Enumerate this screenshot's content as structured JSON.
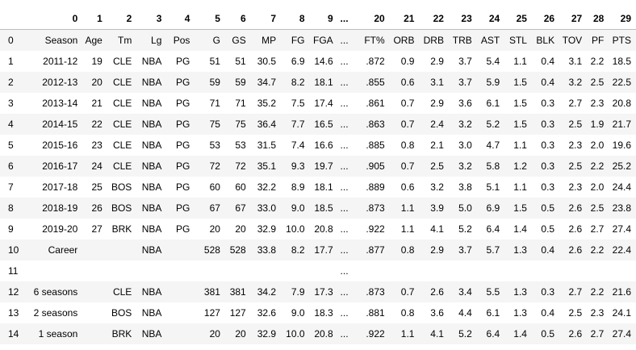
{
  "columns": [
    "0",
    "1",
    "2",
    "3",
    "4",
    "5",
    "6",
    "7",
    "8",
    "9",
    "...",
    "20",
    "21",
    "22",
    "23",
    "24",
    "25",
    "26",
    "27",
    "28",
    "29"
  ],
  "rows": [
    {
      "index": "0",
      "cells": [
        "Season",
        "Age",
        "Tm",
        "Lg",
        "Pos",
        "G",
        "GS",
        "MP",
        "FG",
        "FGA",
        "...",
        "FT%",
        "ORB",
        "DRB",
        "TRB",
        "AST",
        "STL",
        "BLK",
        "TOV",
        "PF",
        "PTS"
      ]
    },
    {
      "index": "1",
      "cells": [
        "2011-12",
        "19",
        "CLE",
        "NBA",
        "PG",
        "51",
        "51",
        "30.5",
        "6.9",
        "14.6",
        "...",
        ".872",
        "0.9",
        "2.9",
        "3.7",
        "5.4",
        "1.1",
        "0.4",
        "3.1",
        "2.2",
        "18.5"
      ]
    },
    {
      "index": "2",
      "cells": [
        "2012-13",
        "20",
        "CLE",
        "NBA",
        "PG",
        "59",
        "59",
        "34.7",
        "8.2",
        "18.1",
        "...",
        ".855",
        "0.6",
        "3.1",
        "3.7",
        "5.9",
        "1.5",
        "0.4",
        "3.2",
        "2.5",
        "22.5"
      ]
    },
    {
      "index": "3",
      "cells": [
        "2013-14",
        "21",
        "CLE",
        "NBA",
        "PG",
        "71",
        "71",
        "35.2",
        "7.5",
        "17.4",
        "...",
        ".861",
        "0.7",
        "2.9",
        "3.6",
        "6.1",
        "1.5",
        "0.3",
        "2.7",
        "2.3",
        "20.8"
      ]
    },
    {
      "index": "4",
      "cells": [
        "2014-15",
        "22",
        "CLE",
        "NBA",
        "PG",
        "75",
        "75",
        "36.4",
        "7.7",
        "16.5",
        "...",
        ".863",
        "0.7",
        "2.4",
        "3.2",
        "5.2",
        "1.5",
        "0.3",
        "2.5",
        "1.9",
        "21.7"
      ]
    },
    {
      "index": "5",
      "cells": [
        "2015-16",
        "23",
        "CLE",
        "NBA",
        "PG",
        "53",
        "53",
        "31.5",
        "7.4",
        "16.6",
        "...",
        ".885",
        "0.8",
        "2.1",
        "3.0",
        "4.7",
        "1.1",
        "0.3",
        "2.3",
        "2.0",
        "19.6"
      ]
    },
    {
      "index": "6",
      "cells": [
        "2016-17",
        "24",
        "CLE",
        "NBA",
        "PG",
        "72",
        "72",
        "35.1",
        "9.3",
        "19.7",
        "...",
        ".905",
        "0.7",
        "2.5",
        "3.2",
        "5.8",
        "1.2",
        "0.3",
        "2.5",
        "2.2",
        "25.2"
      ]
    },
    {
      "index": "7",
      "cells": [
        "2017-18",
        "25",
        "BOS",
        "NBA",
        "PG",
        "60",
        "60",
        "32.2",
        "8.9",
        "18.1",
        "...",
        ".889",
        "0.6",
        "3.2",
        "3.8",
        "5.1",
        "1.1",
        "0.3",
        "2.3",
        "2.0",
        "24.4"
      ]
    },
    {
      "index": "8",
      "cells": [
        "2018-19",
        "26",
        "BOS",
        "NBA",
        "PG",
        "67",
        "67",
        "33.0",
        "9.0",
        "18.5",
        "...",
        ".873",
        "1.1",
        "3.9",
        "5.0",
        "6.9",
        "1.5",
        "0.5",
        "2.6",
        "2.5",
        "23.8"
      ]
    },
    {
      "index": "9",
      "cells": [
        "2019-20",
        "27",
        "BRK",
        "NBA",
        "PG",
        "20",
        "20",
        "32.9",
        "10.0",
        "20.8",
        "...",
        ".922",
        "1.1",
        "4.1",
        "5.2",
        "6.4",
        "1.4",
        "0.5",
        "2.6",
        "2.7",
        "27.4"
      ]
    },
    {
      "index": "10",
      "cells": [
        "Career",
        "",
        "",
        "NBA",
        "",
        "528",
        "528",
        "33.8",
        "8.2",
        "17.7",
        "...",
        ".877",
        "0.8",
        "2.9",
        "3.7",
        "5.7",
        "1.3",
        "0.4",
        "2.6",
        "2.2",
        "22.4"
      ]
    },
    {
      "index": "11",
      "cells": [
        "",
        "",
        "",
        "",
        "",
        "",
        "",
        "",
        "",
        "",
        "...",
        "",
        "",
        "",
        "",
        "",
        "",
        "",
        "",
        "",
        ""
      ]
    },
    {
      "index": "12",
      "cells": [
        "6 seasons",
        "",
        "CLE",
        "NBA",
        "",
        "381",
        "381",
        "34.2",
        "7.9",
        "17.3",
        "...",
        ".873",
        "0.7",
        "2.6",
        "3.4",
        "5.5",
        "1.3",
        "0.3",
        "2.7",
        "2.2",
        "21.6"
      ]
    },
    {
      "index": "13",
      "cells": [
        "2 seasons",
        "",
        "BOS",
        "NBA",
        "",
        "127",
        "127",
        "32.6",
        "9.0",
        "18.3",
        "...",
        ".881",
        "0.8",
        "3.6",
        "4.4",
        "6.1",
        "1.3",
        "0.4",
        "2.5",
        "2.3",
        "24.1"
      ]
    },
    {
      "index": "14",
      "cells": [
        "1 season",
        "",
        "BRK",
        "NBA",
        "",
        "20",
        "20",
        "32.9",
        "10.0",
        "20.8",
        "...",
        ".922",
        "1.1",
        "4.1",
        "5.2",
        "6.4",
        "1.4",
        "0.5",
        "2.6",
        "2.7",
        "27.4"
      ]
    }
  ]
}
